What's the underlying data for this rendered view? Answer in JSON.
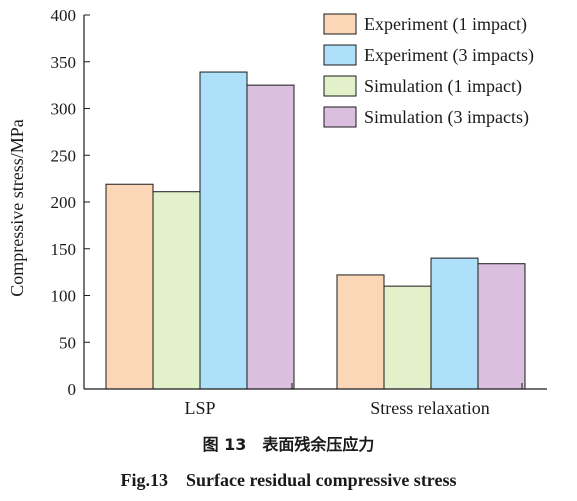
{
  "chart_data": {
    "type": "bar",
    "categories": [
      "LSP",
      "Stress relaxation"
    ],
    "series": [
      {
        "name": "Experiment (1 impact)",
        "values": [
          219,
          122
        ],
        "color": "#fbd7b7"
      },
      {
        "name": "Simulation (1 impact)",
        "values": [
          211,
          110
        ],
        "color": "#e2f1ca"
      },
      {
        "name": "Experiment (3 impacts)",
        "values": [
          339,
          140
        ],
        "color": "#aee0fa"
      },
      {
        "name": "Simulation (3 impacts)",
        "values": [
          325,
          134
        ],
        "color": "#dbbfdf"
      }
    ],
    "legend_order": [
      "Experiment (1 impact)",
      "Experiment (3 impacts)",
      "Simulation (1 impact)",
      "Simulation (3 impacts)"
    ],
    "ylabel": "Compressive stress/MPa",
    "xlabel": "",
    "ylim": [
      0,
      400
    ],
    "yticks": [
      "0",
      "50",
      "100",
      "150",
      "200",
      "250",
      "300",
      "350",
      "400"
    ],
    "legend_position": "top-right",
    "grid": false
  },
  "caption": {
    "cn": "图 13　表面残余压应力",
    "en": "Fig.13　Surface residual compressive stress"
  }
}
